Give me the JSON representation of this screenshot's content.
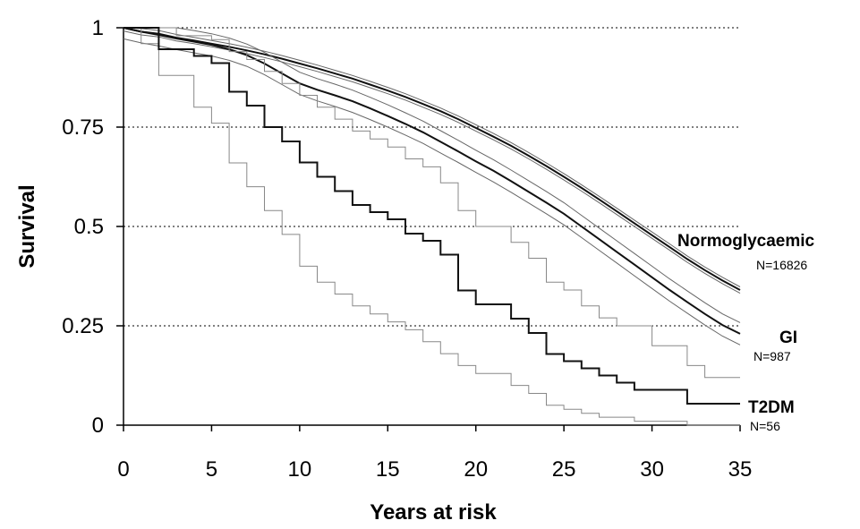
{
  "chart_data": {
    "type": "line",
    "title": "",
    "xlabel": "Years at risk",
    "ylabel": "Survival",
    "xlim": [
      0,
      35
    ],
    "ylim": [
      0,
      1
    ],
    "x_ticks": [
      "0",
      "5",
      "10",
      "15",
      "20",
      "25",
      "30",
      "35"
    ],
    "y_ticks": [
      "0",
      "0.25",
      "0.5",
      "0.75",
      "1"
    ],
    "grid": "horizontal-dotted",
    "series": [
      {
        "name": "Normoglycaemic",
        "n_label": "N=16826",
        "style": "smooth",
        "points": [
          [
            0,
            1
          ],
          [
            1,
            0.99
          ],
          [
            2,
            0.985
          ],
          [
            3,
            0.975
          ],
          [
            4,
            0.968
          ],
          [
            5,
            0.96
          ],
          [
            6,
            0.952
          ],
          [
            7,
            0.943
          ],
          [
            8,
            0.933
          ],
          [
            9,
            0.922
          ],
          [
            10,
            0.91
          ],
          [
            11,
            0.898
          ],
          [
            12,
            0.885
          ],
          [
            13,
            0.872
          ],
          [
            14,
            0.857
          ],
          [
            15,
            0.842
          ],
          [
            16,
            0.826
          ],
          [
            17,
            0.808
          ],
          [
            18,
            0.79
          ],
          [
            19,
            0.77
          ],
          [
            20,
            0.748
          ],
          [
            21,
            0.726
          ],
          [
            22,
            0.703
          ],
          [
            23,
            0.678
          ],
          [
            24,
            0.652
          ],
          [
            25,
            0.625
          ],
          [
            26,
            0.597
          ],
          [
            27,
            0.568
          ],
          [
            28,
            0.538
          ],
          [
            29,
            0.508
          ],
          [
            30,
            0.478
          ],
          [
            31,
            0.448
          ],
          [
            32,
            0.418
          ],
          [
            33,
            0.39
          ],
          [
            34,
            0.364
          ],
          [
            35,
            0.34
          ]
        ],
        "ci": [
          0.008,
          0.008
        ]
      },
      {
        "name": "GI",
        "n_label": "N=987",
        "style": "smooth",
        "points": [
          [
            0,
            1
          ],
          [
            1,
            0.99
          ],
          [
            2,
            0.982
          ],
          [
            3,
            0.973
          ],
          [
            4,
            0.965
          ],
          [
            5,
            0.957
          ],
          [
            6,
            0.946
          ],
          [
            7,
            0.931
          ],
          [
            8,
            0.91
          ],
          [
            9,
            0.885
          ],
          [
            10,
            0.86
          ],
          [
            11,
            0.844
          ],
          [
            12,
            0.83
          ],
          [
            13,
            0.815
          ],
          [
            14,
            0.797
          ],
          [
            15,
            0.778
          ],
          [
            16,
            0.758
          ],
          [
            17,
            0.737
          ],
          [
            18,
            0.713
          ],
          [
            19,
            0.689
          ],
          [
            20,
            0.664
          ],
          [
            21,
            0.64
          ],
          [
            22,
            0.614
          ],
          [
            23,
            0.587
          ],
          [
            24,
            0.56
          ],
          [
            25,
            0.532
          ],
          [
            26,
            0.5
          ],
          [
            27,
            0.468
          ],
          [
            28,
            0.436
          ],
          [
            29,
            0.404
          ],
          [
            30,
            0.372
          ],
          [
            31,
            0.34
          ],
          [
            32,
            0.31
          ],
          [
            33,
            0.28
          ],
          [
            34,
            0.252
          ],
          [
            35,
            0.23
          ]
        ],
        "ci": [
          0.028,
          0.028
        ]
      },
      {
        "name": "T2DM",
        "n_label": "N=56",
        "style": "step",
        "points": [
          [
            0,
            1
          ],
          [
            2,
            0.946
          ],
          [
            4,
            0.929
          ],
          [
            5,
            0.911
          ],
          [
            6,
            0.839
          ],
          [
            7,
            0.804
          ],
          [
            8,
            0.75
          ],
          [
            9,
            0.714
          ],
          [
            10,
            0.661
          ],
          [
            11,
            0.625
          ],
          [
            12,
            0.589
          ],
          [
            13,
            0.554
          ],
          [
            14,
            0.536
          ],
          [
            15,
            0.518
          ],
          [
            16,
            0.482
          ],
          [
            17,
            0.464
          ],
          [
            18,
            0.429
          ],
          [
            19,
            0.339
          ],
          [
            20,
            0.304
          ],
          [
            22,
            0.268
          ],
          [
            23,
            0.232
          ],
          [
            24,
            0.179
          ],
          [
            25,
            0.161
          ],
          [
            26,
            0.143
          ],
          [
            27,
            0.125
          ],
          [
            28,
            0.107
          ],
          [
            29,
            0.089
          ],
          [
            32,
            0.054
          ],
          [
            35,
            0.054
          ]
        ],
        "ci_lower": [
          [
            0,
            1
          ],
          [
            1,
            0.96
          ],
          [
            2,
            0.88
          ],
          [
            4,
            0.8
          ],
          [
            5,
            0.76
          ],
          [
            6,
            0.66
          ],
          [
            7,
            0.6
          ],
          [
            8,
            0.54
          ],
          [
            9,
            0.48
          ],
          [
            10,
            0.4
          ],
          [
            11,
            0.36
          ],
          [
            12,
            0.33
          ],
          [
            13,
            0.3
          ],
          [
            14,
            0.28
          ],
          [
            15,
            0.26
          ],
          [
            16,
            0.24
          ],
          [
            17,
            0.21
          ],
          [
            18,
            0.18
          ],
          [
            19,
            0.15
          ],
          [
            20,
            0.13
          ],
          [
            22,
            0.1
          ],
          [
            23,
            0.08
          ],
          [
            24,
            0.05
          ],
          [
            25,
            0.04
          ],
          [
            26,
            0.03
          ],
          [
            27,
            0.02
          ],
          [
            29,
            0.01
          ],
          [
            32,
            0
          ],
          [
            35,
            0
          ]
        ],
        "ci_upper": [
          [
            0,
            1
          ],
          [
            2,
            1
          ],
          [
            3,
            0.98
          ],
          [
            5,
            0.97
          ],
          [
            6,
            0.94
          ],
          [
            7,
            0.92
          ],
          [
            8,
            0.89
          ],
          [
            9,
            0.86
          ],
          [
            10,
            0.83
          ],
          [
            11,
            0.8
          ],
          [
            12,
            0.77
          ],
          [
            13,
            0.74
          ],
          [
            14,
            0.72
          ],
          [
            15,
            0.7
          ],
          [
            16,
            0.67
          ],
          [
            17,
            0.65
          ],
          [
            18,
            0.61
          ],
          [
            19,
            0.54
          ],
          [
            20,
            0.5
          ],
          [
            22,
            0.46
          ],
          [
            23,
            0.42
          ],
          [
            24,
            0.36
          ],
          [
            25,
            0.34
          ],
          [
            26,
            0.3
          ],
          [
            27,
            0.27
          ],
          [
            28,
            0.25
          ],
          [
            30,
            0.2
          ],
          [
            32,
            0.15
          ],
          [
            33,
            0.12
          ],
          [
            35,
            0.12
          ]
        ]
      }
    ]
  }
}
